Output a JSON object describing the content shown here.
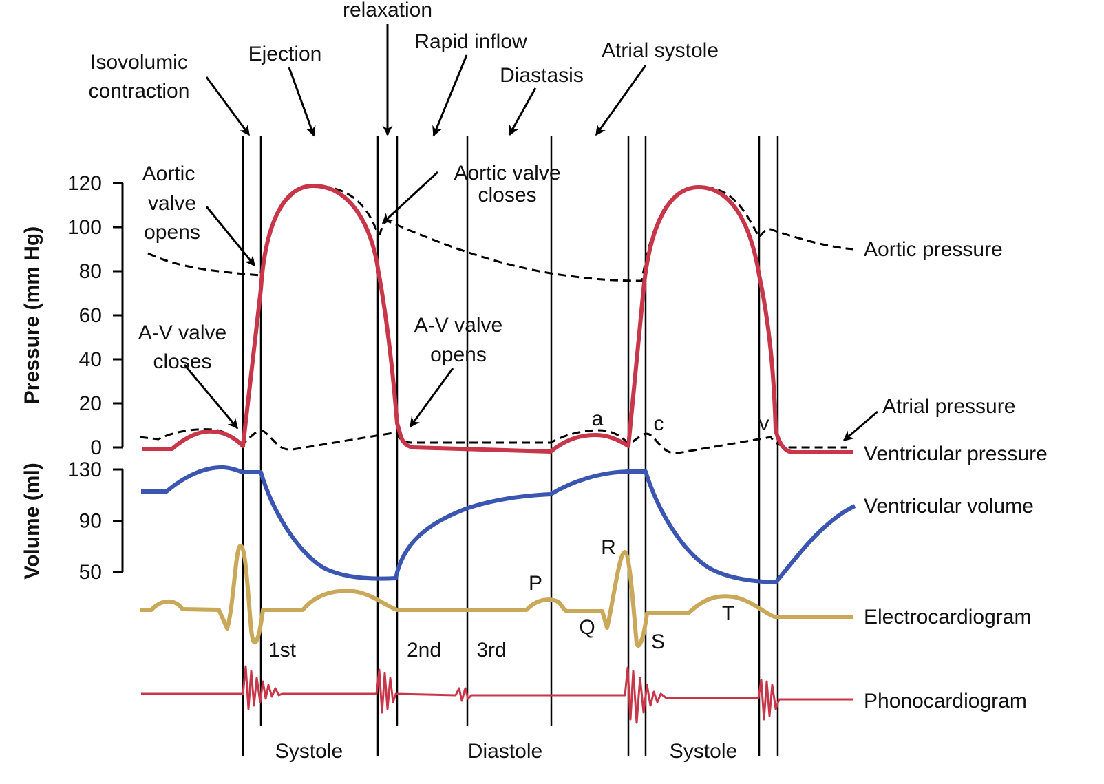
{
  "phase_labels": [
    [
      "Isovolumic",
      "contraction"
    ],
    [
      "Ejection"
    ],
    [
      "relaxation"
    ],
    [
      "Rapid inflow"
    ],
    [
      "Diastasis"
    ],
    [
      "Atrial systole"
    ]
  ],
  "valve_labels": [
    [
      "Aortic",
      "valve",
      "opens"
    ],
    [
      "Aortic valve",
      "closes"
    ],
    [
      "A-V valve",
      "closes"
    ],
    [
      "A-V valve",
      "opens"
    ]
  ],
  "trace_labels": [
    "Aortic pressure",
    "Atrial pressure",
    "Ventricular pressure",
    "Ventricular volume",
    "Electrocardiogram",
    "Phonocardiogram"
  ],
  "wave_labels": [
    "a",
    "c",
    "v",
    "P",
    "Q",
    "R",
    "S",
    "T"
  ],
  "heart_sounds": [
    "1st",
    "2nd",
    "3rd"
  ],
  "cycle_phases": [
    "Systole",
    "Diastole",
    "Systole"
  ],
  "pressure_axis": {
    "title": "Pressure (mm Hg)",
    "range": [
      0,
      120
    ],
    "ticks": [
      0,
      20,
      40,
      60,
      80,
      100,
      120
    ]
  },
  "volume_axis": {
    "title": "Volume (ml)",
    "range": [
      50,
      130
    ],
    "ticks": [
      50,
      90,
      130
    ]
  }
}
